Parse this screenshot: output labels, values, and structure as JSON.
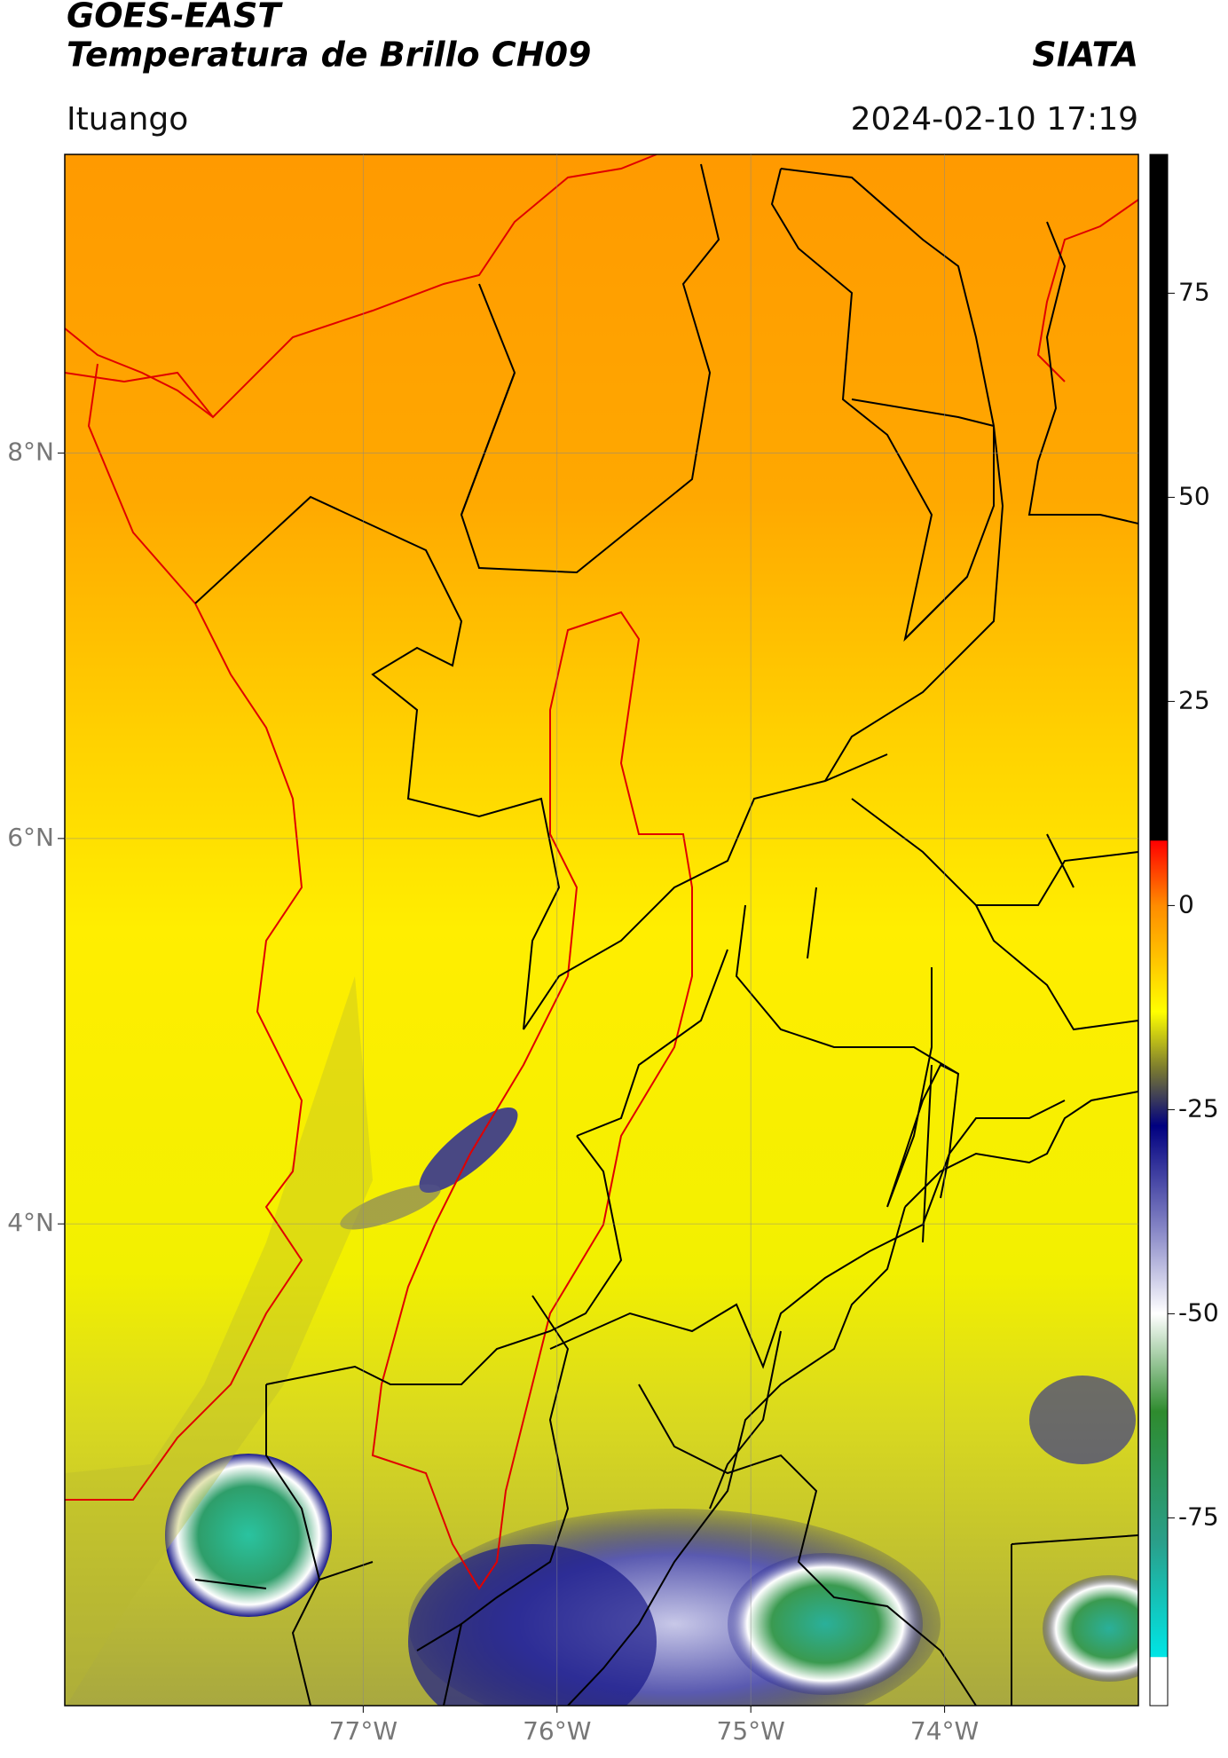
{
  "header": {
    "title": "GOES-EAST",
    "subtitle": "Temperatura de Brillo CH09",
    "source": "SIATA",
    "location": "Ituango",
    "datetime": "2024-02-10 17:19"
  },
  "map": {
    "xlim": [
      -78.54,
      -73.0
    ],
    "ylim": [
      1.5,
      9.55
    ],
    "xticks": [
      {
        "value": -77,
        "label": "77°W"
      },
      {
        "value": -76,
        "label": "76°W"
      },
      {
        "value": -75,
        "label": "75°W"
      },
      {
        "value": -74,
        "label": "74°W"
      }
    ],
    "yticks": [
      {
        "value": 8,
        "label": "8°N"
      },
      {
        "value": 6,
        "label": "6°N"
      },
      {
        "value": 4,
        "label": "4°N"
      }
    ],
    "grid": true
  },
  "colorbar": {
    "lim": [
      -98,
      92
    ],
    "ticks": [
      75,
      50,
      25,
      0,
      -25,
      -50,
      -75
    ],
    "colormap": [
      {
        "value": 92,
        "color": "#000000"
      },
      {
        "value": 8,
        "color": "#000000"
      },
      {
        "value": 7.9,
        "color": "#ff0000"
      },
      {
        "value": 0,
        "color": "#ff8c00"
      },
      {
        "value": -8,
        "color": "#ffd000"
      },
      {
        "value": -13,
        "color": "#ffff00"
      },
      {
        "value": -20,
        "color": "#7a7a30"
      },
      {
        "value": -27,
        "color": "#000080"
      },
      {
        "value": -40,
        "color": "#8a8ac8"
      },
      {
        "value": -50,
        "color": "#ffffff"
      },
      {
        "value": -62,
        "color": "#2e8b2e"
      },
      {
        "value": -78,
        "color": "#2a9f8a"
      },
      {
        "value": -92,
        "color": "#00e5e5"
      },
      {
        "value": -92.1,
        "color": "#ffffff"
      },
      {
        "value": -98,
        "color": "#ffffff"
      }
    ]
  }
}
